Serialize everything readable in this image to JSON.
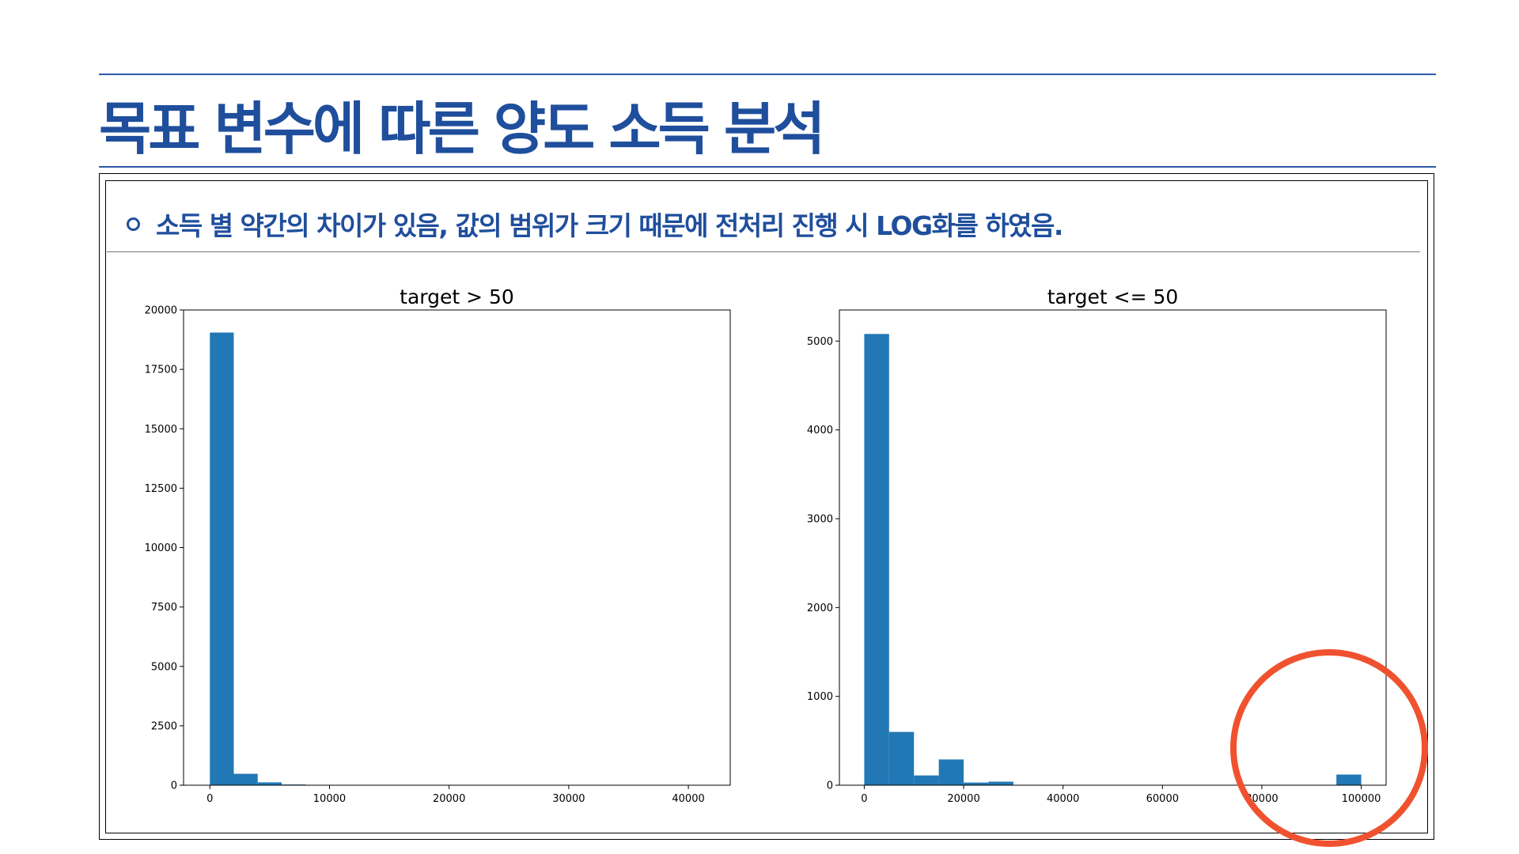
{
  "slide": {
    "title": "목표 변수에 따른 양도 소득 분석",
    "bullet": "소득 별 약간의 차이가 있음, 값의 범위가 크기 때문에 전처리 진행 시 LOG화를 하였음.",
    "accent_color": "#1f4e9c",
    "annotation_color": "#f0522f"
  },
  "chart_data": [
    {
      "type": "bar",
      "title": "target > 50",
      "bar_color": "#2278b5",
      "bin_width": 2000,
      "bins": [
        {
          "x0": 0,
          "value": 19050
        },
        {
          "x0": 2000,
          "value": 480
        },
        {
          "x0": 4000,
          "value": 120
        },
        {
          "x0": 6000,
          "value": 30
        }
      ],
      "xlim": [
        -2200,
        43500
      ],
      "ylim": [
        0,
        20000
      ],
      "xticks": [
        0,
        10000,
        20000,
        30000,
        40000
      ],
      "yticks": [
        0,
        2500,
        5000,
        7500,
        10000,
        12500,
        15000,
        17500,
        20000
      ],
      "grid": false
    },
    {
      "type": "bar",
      "title": "target <= 50",
      "bar_color": "#2278b5",
      "bin_width": 5000,
      "bins": [
        {
          "x0": 0,
          "value": 5080
        },
        {
          "x0": 5000,
          "value": 600
        },
        {
          "x0": 10000,
          "value": 110
        },
        {
          "x0": 15000,
          "value": 290
        },
        {
          "x0": 20000,
          "value": 30
        },
        {
          "x0": 25000,
          "value": 40
        },
        {
          "x0": 95000,
          "value": 120
        }
      ],
      "xlim": [
        -5000,
        105000
      ],
      "ylim": [
        0,
        5350
      ],
      "xticks": [
        0,
        20000,
        40000,
        60000,
        80000,
        100000
      ],
      "yticks": [
        0,
        1000,
        2000,
        3000,
        4000,
        5000
      ],
      "grid": false
    }
  ]
}
